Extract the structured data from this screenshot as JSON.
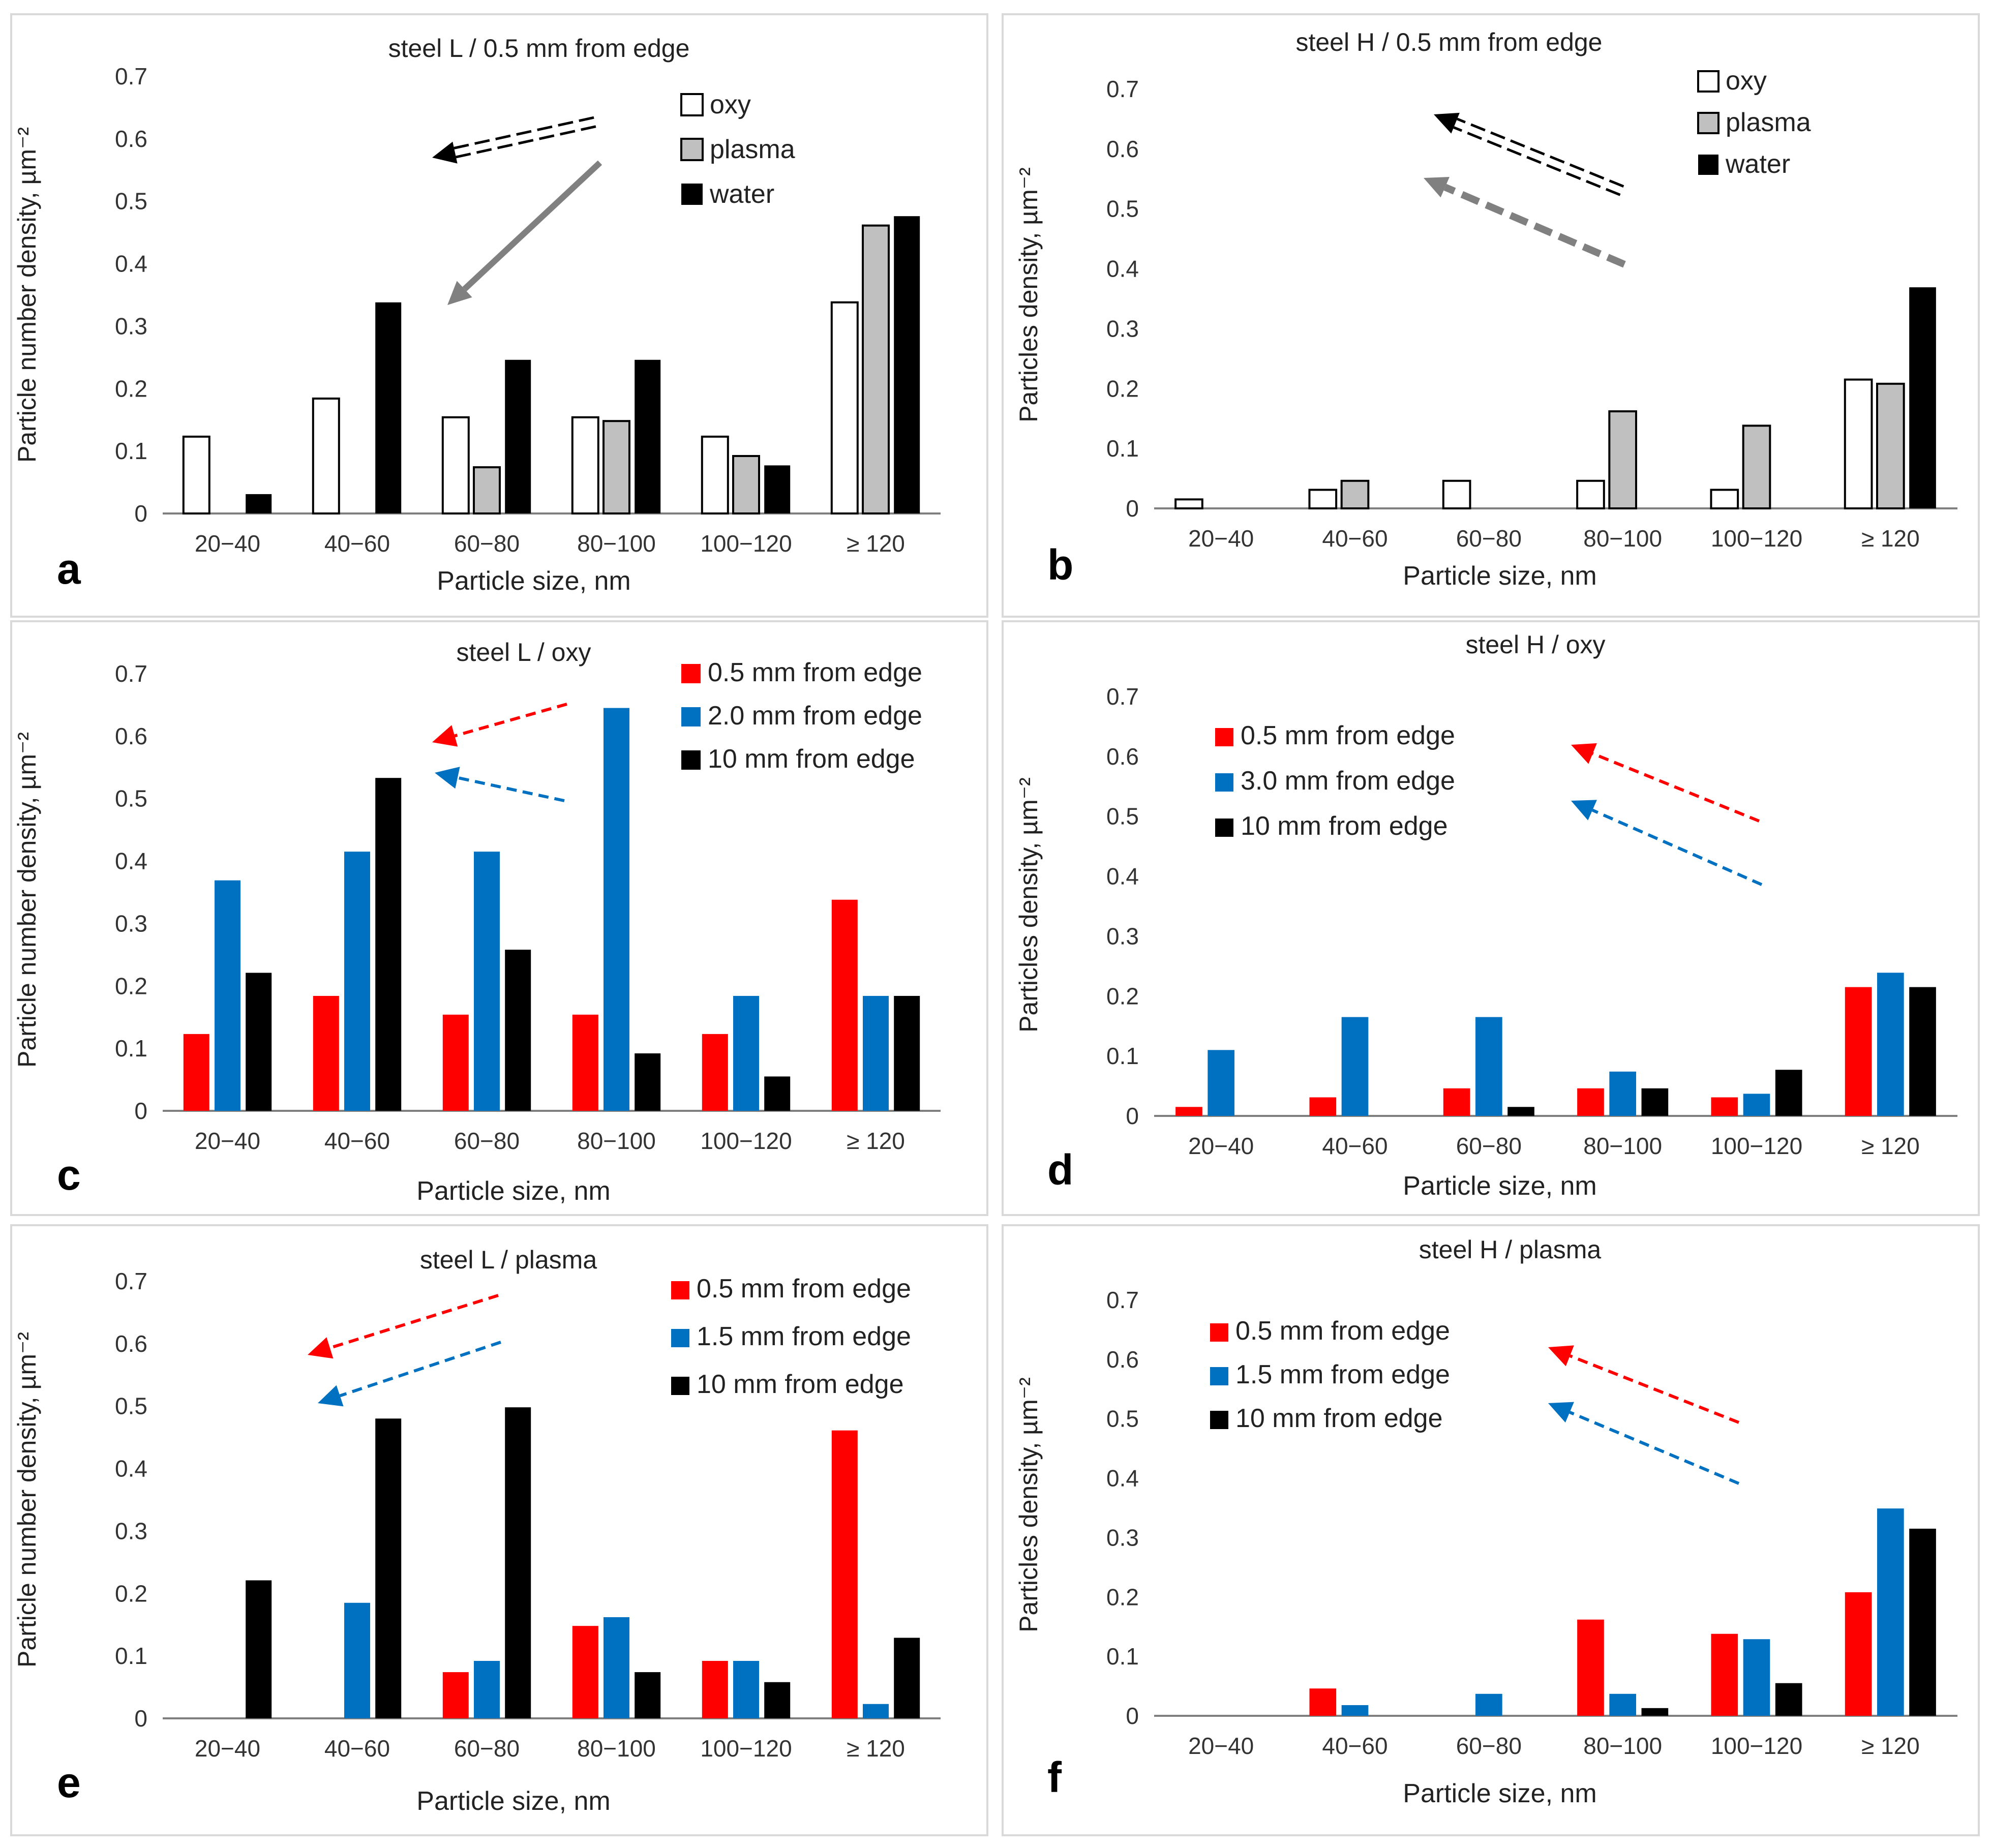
{
  "colors": {
    "oxy": "#ffffff",
    "plasma": "#c0c0c0",
    "water": "#000000",
    "red": "#ff0000",
    "blue": "#0070c0",
    "black": "#000000",
    "arrow_gray": "#808080",
    "panel_border": "#d9d9d9",
    "axis": "#7f7f7f"
  },
  "chart_data": [
    {
      "panel": "a",
      "type": "bar",
      "title": "steel L / 0.5 mm from edge",
      "xlabel": "Particle size, nm",
      "ylabel": "Particle number density, µm⁻²",
      "ylim": [
        0,
        0.7
      ],
      "yticks": [
        "0",
        "0.1",
        "0.2",
        "0.3",
        "0.4",
        "0.5",
        "0.6",
        "0.7"
      ],
      "categories": [
        "20−40",
        "40−60",
        "60−80",
        "80−100",
        "100−120",
        "≥ 120"
      ],
      "series": [
        {
          "name": "oxy",
          "color_key": "oxy",
          "values": [
            0.123,
            0.184,
            0.154,
            0.154,
            0.123,
            0.338
          ]
        },
        {
          "name": "plasma",
          "color_key": "plasma",
          "values": [
            0,
            0,
            0.074,
            0.148,
            0.092,
            0.461
          ]
        },
        {
          "name": "water",
          "color_key": "water",
          "values": [
            0.031,
            0.338,
            0.246,
            0.246,
            0.077,
            0.476
          ]
        }
      ],
      "legend_position": "top-right",
      "arrows": [
        {
          "style": "double-dashed",
          "color_key": "black",
          "direction": "left"
        },
        {
          "style": "solid",
          "color_key": "arrow_gray",
          "direction": "down-left"
        }
      ]
    },
    {
      "panel": "b",
      "type": "bar",
      "title": "steel H / 0.5 mm from edge",
      "xlabel": "Particle size, nm",
      "ylabel": "Particles density, µm⁻²",
      "ylim": [
        0,
        0.7
      ],
      "yticks": [
        "0",
        "0.1",
        "0.2",
        "0.3",
        "0.4",
        "0.5",
        "0.6",
        "0.7"
      ],
      "categories": [
        "20−40",
        "40−60",
        "60−80",
        "80−100",
        "100−120",
        "≥ 120"
      ],
      "series": [
        {
          "name": "oxy",
          "color_key": "oxy",
          "values": [
            0.015,
            0.031,
            0.046,
            0.046,
            0.031,
            0.215
          ]
        },
        {
          "name": "plasma",
          "color_key": "plasma",
          "values": [
            0,
            0.046,
            0,
            0.162,
            0.138,
            0.208
          ]
        },
        {
          "name": "water",
          "color_key": "water",
          "values": [
            0,
            0,
            0,
            0,
            0,
            0.369
          ]
        }
      ],
      "legend_position": "top-right",
      "arrows": [
        {
          "style": "double-dashed",
          "color_key": "black",
          "direction": "up-left"
        },
        {
          "style": "dashed",
          "color_key": "arrow_gray",
          "direction": "up-left"
        }
      ]
    },
    {
      "panel": "c",
      "type": "bar",
      "title": "steel L / oxy",
      "xlabel": "Particle size, nm",
      "ylabel": "Particle number density, µm⁻²",
      "ylim": [
        0,
        0.7
      ],
      "yticks": [
        "0",
        "0.1",
        "0.2",
        "0.3",
        "0.4",
        "0.5",
        "0.6",
        "0.7"
      ],
      "categories": [
        "20−40",
        "40−60",
        "60−80",
        "80−100",
        "100−120",
        "≥ 120"
      ],
      "series": [
        {
          "name": "0.5 mm from edge",
          "color_key": "red",
          "values": [
            0.123,
            0.184,
            0.154,
            0.154,
            0.123,
            0.338
          ]
        },
        {
          "name": "2.0 mm from edge",
          "color_key": "blue",
          "values": [
            0.369,
            0.415,
            0.415,
            0.645,
            0.184,
            0.184
          ]
        },
        {
          "name": "10 mm from edge",
          "color_key": "black",
          "values": [
            0.221,
            0.533,
            0.258,
            0.092,
            0.055,
            0.184
          ]
        }
      ],
      "legend_position": "top-right",
      "arrows": [
        {
          "style": "dashed",
          "color_key": "red",
          "direction": "left"
        },
        {
          "style": "dashed",
          "color_key": "blue",
          "direction": "left"
        }
      ]
    },
    {
      "panel": "d",
      "type": "bar",
      "title": "steel H / oxy",
      "xlabel": "Particle size, nm",
      "ylabel": "Particles density, µm⁻²",
      "ylim": [
        0,
        0.7
      ],
      "yticks": [
        "0",
        "0.1",
        "0.2",
        "0.3",
        "0.4",
        "0.5",
        "0.6",
        "0.7"
      ],
      "categories": [
        "20−40",
        "40−60",
        "60−80",
        "80−100",
        "100−120",
        "≥ 120"
      ],
      "series": [
        {
          "name": "0.5 mm from edge",
          "color_key": "red",
          "values": [
            0.015,
            0.031,
            0.046,
            0.046,
            0.031,
            0.215
          ]
        },
        {
          "name": "3.0 mm from edge",
          "color_key": "blue",
          "values": [
            0.11,
            0.165,
            0.165,
            0.074,
            0.037,
            0.239
          ]
        },
        {
          "name": "10 mm from edge",
          "color_key": "black",
          "values": [
            0,
            0,
            0.015,
            0.046,
            0.077,
            0.215
          ]
        }
      ],
      "legend_position": "top-left",
      "arrows": [
        {
          "style": "dashed",
          "color_key": "red",
          "direction": "up-left"
        },
        {
          "style": "dashed",
          "color_key": "blue",
          "direction": "up-left"
        }
      ]
    },
    {
      "panel": "e",
      "type": "bar",
      "title": "steel L / plasma",
      "xlabel": "Particle size, nm",
      "ylabel": "Particle number density, µm⁻²",
      "ylim": [
        0,
        0.7
      ],
      "yticks": [
        "0",
        "0.1",
        "0.2",
        "0.3",
        "0.4",
        "0.5",
        "0.6",
        "0.7"
      ],
      "categories": [
        "20−40",
        "40−60",
        "60−80",
        "80−100",
        "100−120",
        "≥ 120"
      ],
      "series": [
        {
          "name": "0.5 mm from edge",
          "color_key": "red",
          "values": [
            0,
            0,
            0.074,
            0.148,
            0.092,
            0.461
          ]
        },
        {
          "name": "1.5 mm from edge",
          "color_key": "blue",
          "values": [
            0,
            0.185,
            0.092,
            0.162,
            0.092,
            0.023
          ]
        },
        {
          "name": "10 mm from edge",
          "color_key": "black",
          "values": [
            0.221,
            0.48,
            0.498,
            0.074,
            0.058,
            0.129
          ]
        }
      ],
      "legend_position": "top-right",
      "arrows": [
        {
          "style": "dashed",
          "color_key": "red",
          "direction": "down-left"
        },
        {
          "style": "dashed",
          "color_key": "blue",
          "direction": "down-left"
        }
      ]
    },
    {
      "panel": "f",
      "type": "bar",
      "title": "steel H / plasma",
      "xlabel": "Particle size, nm",
      "ylabel": "Particles density, µm⁻²",
      "ylim": [
        0,
        0.7
      ],
      "yticks": [
        "0",
        "0.1",
        "0.2",
        "0.3",
        "0.4",
        "0.5",
        "0.6",
        "0.7"
      ],
      "categories": [
        "20−40",
        "40−60",
        "60−80",
        "80−100",
        "100−120",
        "≥ 120"
      ],
      "series": [
        {
          "name": "0.5 mm from edge",
          "color_key": "red",
          "values": [
            0,
            0.046,
            0,
            0.162,
            0.138,
            0.208
          ]
        },
        {
          "name": "1.5 mm from edge",
          "color_key": "blue",
          "values": [
            0,
            0.018,
            0.037,
            0.037,
            0.129,
            0.349
          ]
        },
        {
          "name": "10 mm from edge",
          "color_key": "black",
          "values": [
            0,
            0,
            0,
            0.013,
            0.055,
            0.315
          ]
        }
      ],
      "legend_position": "top-left",
      "arrows": [
        {
          "style": "dashed",
          "color_key": "red",
          "direction": "up-left"
        },
        {
          "style": "dashed",
          "color_key": "blue",
          "direction": "up-left"
        }
      ]
    }
  ]
}
